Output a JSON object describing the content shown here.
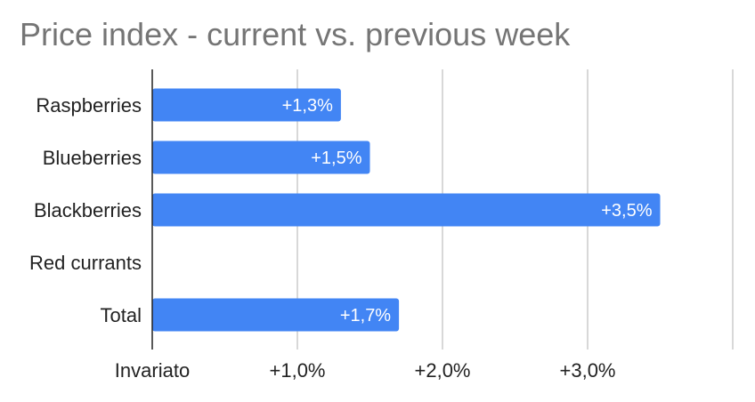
{
  "chart_data": {
    "type": "bar",
    "orientation": "horizontal",
    "title": "Price index - current vs. previous week",
    "categories": [
      "Raspberries",
      "Blueberries",
      "Blackberries",
      "Red currants",
      "Total"
    ],
    "values": [
      1.3,
      1.5,
      3.5,
      0,
      1.7
    ],
    "data_labels": [
      "+1,3%",
      "+1,5%",
      "+3,5%",
      "",
      "+1,7%"
    ],
    "xlim": [
      0,
      4
    ],
    "x_ticks": [
      0,
      1,
      2,
      3,
      4
    ],
    "x_tick_labels": [
      "Invariato",
      "+1,0%",
      "+2,0%",
      "+3,0%",
      ""
    ],
    "grid": true,
    "legend": "none",
    "bar_color": "#4285f4",
    "grid_color": "#cccccc",
    "axis_color": "#222222"
  }
}
